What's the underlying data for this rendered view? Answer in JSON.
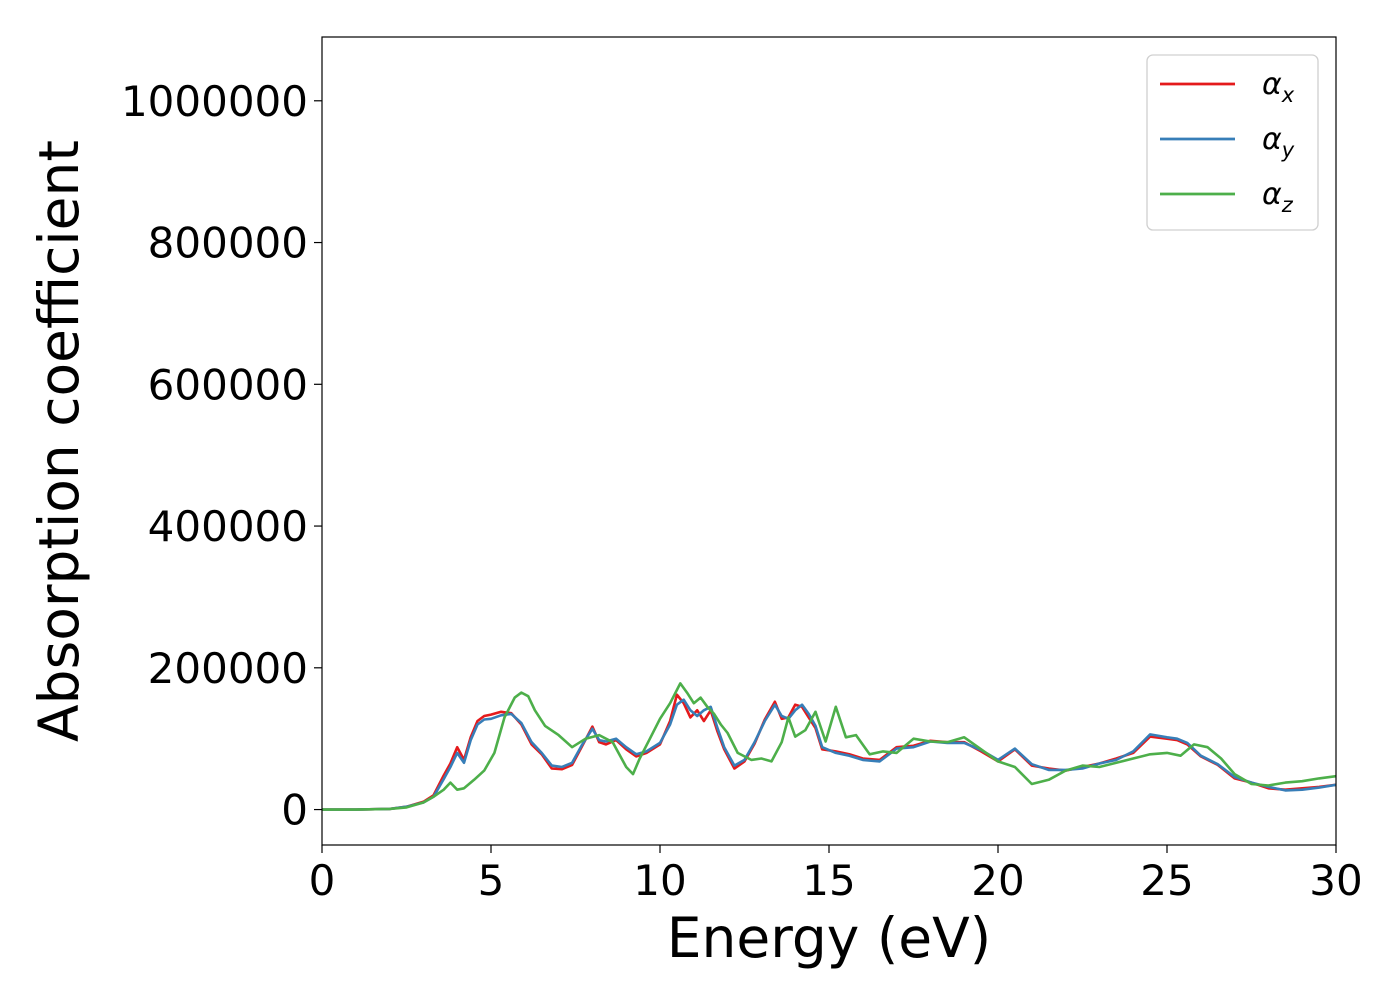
{
  "chart_data": {
    "type": "line",
    "title": "",
    "xlabel": "Energy (eV)",
    "ylabel": "Absorption coefficient",
    "xlim": [
      0,
      30
    ],
    "ylim": [
      -50000,
      1090000
    ],
    "xticks": [
      0,
      5,
      10,
      15,
      20,
      25,
      30
    ],
    "yticks": [
      0,
      200000,
      400000,
      600000,
      800000,
      1000000
    ],
    "grid": false,
    "legend_position": "top-right",
    "series": [
      {
        "name": "α_x",
        "label_base": "α",
        "label_sub": "x",
        "color": "#e41a1c",
        "x": [
          0,
          1,
          2,
          2.5,
          3,
          3.3,
          3.6,
          3.8,
          4.0,
          4.2,
          4.4,
          4.6,
          4.8,
          5.0,
          5.3,
          5.6,
          5.9,
          6.2,
          6.5,
          6.8,
          7.1,
          7.4,
          7.7,
          8.0,
          8.2,
          8.4,
          8.7,
          9.0,
          9.3,
          9.6,
          10.0,
          10.3,
          10.5,
          10.7,
          10.9,
          11.1,
          11.3,
          11.5,
          11.7,
          11.9,
          12.2,
          12.5,
          12.8,
          13.1,
          13.4,
          13.6,
          13.8,
          14.0,
          14.2,
          14.4,
          14.6,
          14.8,
          15.2,
          15.6,
          16.0,
          16.5,
          17.0,
          17.5,
          18.0,
          18.5,
          19.0,
          19.5,
          20.0,
          20.5,
          21.0,
          21.5,
          22.0,
          22.5,
          23.0,
          23.5,
          24.0,
          24.5,
          25.0,
          25.3,
          25.6,
          26.0,
          26.5,
          27.0,
          27.5,
          28.0,
          28.5,
          29.0,
          29.5,
          30.0
        ],
        "values": [
          0,
          0,
          1000,
          4000,
          11000,
          20000,
          48000,
          65000,
          88000,
          70000,
          102000,
          125000,
          132000,
          134000,
          138000,
          136000,
          120000,
          92000,
          78000,
          58000,
          57000,
          63000,
          90000,
          117000,
          95000,
          92000,
          98000,
          85000,
          75000,
          80000,
          92000,
          125000,
          162000,
          150000,
          130000,
          140000,
          125000,
          140000,
          110000,
          85000,
          58000,
          68000,
          93000,
          127000,
          152000,
          128000,
          130000,
          148000,
          145000,
          130000,
          115000,
          85000,
          82000,
          78000,
          72000,
          70000,
          88000,
          90000,
          97000,
          95000,
          95000,
          82000,
          68000,
          85000,
          62000,
          58000,
          55000,
          60000,
          65000,
          72000,
          80000,
          103000,
          100000,
          98000,
          92000,
          75000,
          63000,
          44000,
          38000,
          30000,
          28000,
          30000,
          32000,
          35000
        ]
      },
      {
        "name": "α_y",
        "label_base": "α",
        "label_sub": "y",
        "color": "#377eb8",
        "x": [
          0,
          1,
          2,
          2.5,
          3,
          3.3,
          3.6,
          3.8,
          4.0,
          4.2,
          4.4,
          4.6,
          4.8,
          5.0,
          5.3,
          5.6,
          5.9,
          6.2,
          6.5,
          6.8,
          7.1,
          7.4,
          7.7,
          8.0,
          8.2,
          8.4,
          8.7,
          9.0,
          9.3,
          9.6,
          10.0,
          10.3,
          10.5,
          10.7,
          10.9,
          11.1,
          11.3,
          11.5,
          11.7,
          11.9,
          12.2,
          12.5,
          12.8,
          13.1,
          13.4,
          13.6,
          13.8,
          14.0,
          14.2,
          14.4,
          14.6,
          14.8,
          15.2,
          15.6,
          16.0,
          16.5,
          17.0,
          17.5,
          18.0,
          18.5,
          19.0,
          19.5,
          20.0,
          20.5,
          21.0,
          21.5,
          22.0,
          22.5,
          23.0,
          23.5,
          24.0,
          24.5,
          25.0,
          25.3,
          25.6,
          26.0,
          26.5,
          27.0,
          27.5,
          28.0,
          28.5,
          29.0,
          29.5,
          30.0
        ],
        "values": [
          0,
          0,
          1000,
          4000,
          10000,
          18000,
          43000,
          60000,
          80000,
          66000,
          98000,
          120000,
          127000,
          128000,
          133000,
          135000,
          122000,
          95000,
          80000,
          62000,
          60000,
          66000,
          92000,
          114000,
          98000,
          96000,
          100000,
          88000,
          78000,
          82000,
          94000,
          120000,
          148000,
          155000,
          140000,
          132000,
          140000,
          145000,
          115000,
          88000,
          62000,
          70000,
          95000,
          125000,
          148000,
          132000,
          128000,
          140000,
          148000,
          135000,
          118000,
          88000,
          80000,
          76000,
          70000,
          68000,
          86000,
          88000,
          96000,
          94000,
          94000,
          84000,
          70000,
          86000,
          64000,
          56000,
          56000,
          58000,
          65000,
          70000,
          82000,
          106000,
          102000,
          100000,
          94000,
          76000,
          64000,
          46000,
          38000,
          32000,
          27000,
          28000,
          31000,
          35000
        ]
      },
      {
        "name": "α_z",
        "label_base": "α",
        "label_sub": "z",
        "color": "#4daf4a",
        "x": [
          0,
          1,
          2,
          2.5,
          3,
          3.3,
          3.6,
          3.8,
          4.0,
          4.2,
          4.5,
          4.8,
          5.1,
          5.4,
          5.7,
          5.9,
          6.1,
          6.3,
          6.6,
          7.0,
          7.4,
          7.8,
          8.2,
          8.6,
          9.0,
          9.2,
          9.4,
          9.7,
          10.0,
          10.3,
          10.6,
          10.8,
          11.0,
          11.2,
          11.4,
          11.6,
          11.8,
          12.0,
          12.3,
          12.7,
          13.0,
          13.3,
          13.6,
          13.8,
          14.0,
          14.3,
          14.6,
          14.9,
          15.2,
          15.5,
          15.8,
          16.2,
          16.6,
          17.0,
          17.5,
          18.0,
          18.5,
          19.0,
          19.5,
          20.0,
          20.5,
          21.0,
          21.5,
          22.0,
          22.5,
          23.0,
          23.5,
          24.0,
          24.5,
          25.0,
          25.4,
          25.8,
          26.2,
          26.6,
          27.0,
          27.5,
          28.0,
          28.5,
          29.0,
          29.5,
          30.0
        ],
        "values": [
          0,
          0,
          1000,
          3000,
          10000,
          18000,
          28000,
          38000,
          28000,
          30000,
          42000,
          55000,
          80000,
          130000,
          158000,
          165000,
          160000,
          140000,
          118000,
          105000,
          88000,
          100000,
          105000,
          95000,
          60000,
          50000,
          72000,
          100000,
          128000,
          150000,
          178000,
          165000,
          150000,
          158000,
          145000,
          135000,
          120000,
          108000,
          80000,
          70000,
          72000,
          68000,
          95000,
          130000,
          103000,
          112000,
          138000,
          96000,
          145000,
          102000,
          105000,
          78000,
          82000,
          80000,
          100000,
          96000,
          95000,
          102000,
          85000,
          68000,
          60000,
          36000,
          42000,
          55000,
          62000,
          60000,
          66000,
          72000,
          78000,
          80000,
          76000,
          92000,
          88000,
          72000,
          50000,
          36000,
          34000,
          38000,
          40000,
          44000,
          47000
        ]
      }
    ]
  }
}
